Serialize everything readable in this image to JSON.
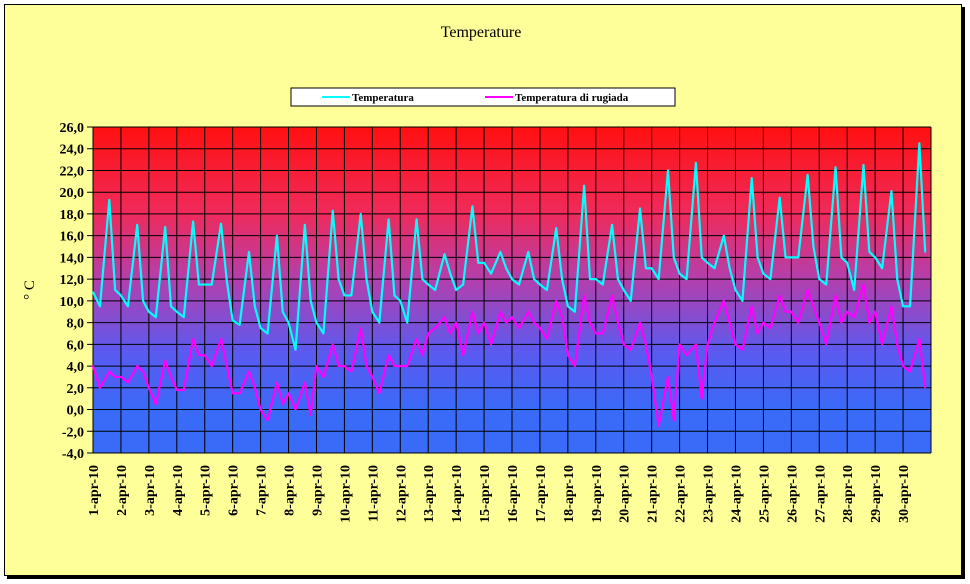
{
  "chart_data": {
    "type": "line",
    "title": "Temperature",
    "xlabel": "",
    "ylabel": "° C",
    "ylim": [
      -4,
      26
    ],
    "ytick_step": 2,
    "ytick_labels": [
      "-4,0",
      "-2,0",
      "0,0",
      "2,0",
      "4,0",
      "6,0",
      "8,0",
      "10,0",
      "12,0",
      "14,0",
      "16,0",
      "18,0",
      "20,0",
      "22,0",
      "24,0",
      "26,0"
    ],
    "categories": [
      "1-apr-10",
      "2-apr-10",
      "3-apr-10",
      "4-apr-10",
      "5-apr-10",
      "6-apr-10",
      "7-apr-10",
      "8-apr-10",
      "9-apr-10",
      "10-apr-10",
      "11-apr-10",
      "12-apr-10",
      "13-apr-10",
      "14-apr-10",
      "15-apr-10",
      "16-apr-10",
      "17-apr-10",
      "18-apr-10",
      "19-apr-10",
      "20-apr-10",
      "21-apr-10",
      "22-apr-10",
      "23-apr-10",
      "24-apr-10",
      "25-apr-10",
      "26-apr-10",
      "27-apr-10",
      "28-apr-10",
      "29-apr-10",
      "30-apr-10"
    ],
    "sample_hours": [
      0,
      6,
      14,
      19
    ],
    "grid": true,
    "legend_position": "top-center",
    "series": [
      {
        "name": "Temperatura",
        "color": "#00ffff",
        "values": [
          [
            10.8,
            9.5,
            19.3,
            11
          ],
          [
            10.5,
            9.5,
            17,
            10
          ],
          [
            9,
            8.5,
            16.8,
            9.5
          ],
          [
            9,
            8.5,
            17.3,
            11.5
          ],
          [
            11.5,
            11.5,
            17.1,
            11.8
          ],
          [
            8.2,
            7.8,
            14.5,
            9.5
          ],
          [
            7.5,
            7,
            16,
            9
          ],
          [
            8,
            5.5,
            17,
            10
          ],
          [
            8,
            7,
            18.3,
            12
          ],
          [
            10.5,
            10.5,
            18,
            12
          ],
          [
            9,
            8,
            17.5,
            10.5
          ],
          [
            10,
            8,
            17.5,
            12
          ],
          [
            11.5,
            11,
            14.3,
            12.5
          ],
          [
            11,
            11.5,
            18.7,
            13.5
          ],
          [
            13.5,
            12.5,
            14.5,
            13
          ],
          [
            12,
            11.5,
            14.5,
            12
          ],
          [
            11.5,
            11,
            16.7,
            12
          ],
          [
            9.5,
            9,
            20.6,
            12
          ],
          [
            12,
            11.5,
            17,
            12
          ],
          [
            11,
            10,
            18.5,
            13
          ],
          [
            13,
            12,
            22,
            14
          ],
          [
            12.5,
            12,
            22.7,
            14
          ],
          [
            13.5,
            13,
            16,
            13
          ],
          [
            11,
            10,
            21.3,
            14
          ],
          [
            12.5,
            12,
            19.5,
            14
          ],
          [
            14,
            14,
            21.6,
            15
          ],
          [
            12,
            11.5,
            22.3,
            14
          ],
          [
            13.5,
            11,
            22.5,
            14.5
          ],
          [
            14,
            13,
            20.1,
            12
          ],
          [
            9.5,
            9.5,
            24.5,
            14.5
          ]
        ]
      },
      {
        "name": "Temperatura di rugiada",
        "color": "#ff00ff",
        "values": [
          [
            4,
            2,
            3.5,
            3
          ],
          [
            3,
            2.5,
            4,
            3.5
          ],
          [
            2,
            0.5,
            4.5,
            3
          ],
          [
            1.8,
            1.8,
            6.5,
            5
          ],
          [
            5,
            4,
            6.5,
            4
          ],
          [
            1.5,
            1.5,
            3.5,
            2
          ],
          [
            0,
            -1,
            2.5,
            0.5
          ],
          [
            1.5,
            0,
            2.5,
            -0.5
          ],
          [
            4,
            3,
            6,
            4
          ],
          [
            4,
            3.5,
            7.5,
            4
          ],
          [
            3,
            1.5,
            5,
            4
          ],
          [
            4,
            4,
            6.5,
            5
          ],
          [
            7,
            7.5,
            8.5,
            7
          ],
          [
            8,
            5,
            9,
            7
          ],
          [
            8,
            6,
            9,
            8
          ],
          [
            8.5,
            7.5,
            9,
            8
          ],
          [
            7.5,
            6.5,
            10,
            8.5
          ],
          [
            5,
            4,
            10.5,
            8
          ],
          [
            7,
            7,
            10.5,
            8
          ],
          [
            6,
            5.5,
            8,
            6
          ],
          [
            3,
            -1.5,
            3,
            -1
          ],
          [
            6,
            5,
            6,
            1
          ],
          [
            6,
            8,
            10,
            8
          ],
          [
            6,
            5.5,
            9.5,
            7
          ],
          [
            8,
            7.5,
            10.5,
            9
          ],
          [
            9,
            8,
            11,
            9.5
          ],
          [
            8,
            6,
            10.5,
            8
          ],
          [
            9,
            8.5,
            11.5,
            8
          ],
          [
            9,
            6,
            9.5,
            6
          ],
          [
            4,
            3.5,
            6.5,
            2
          ]
        ]
      }
    ]
  }
}
